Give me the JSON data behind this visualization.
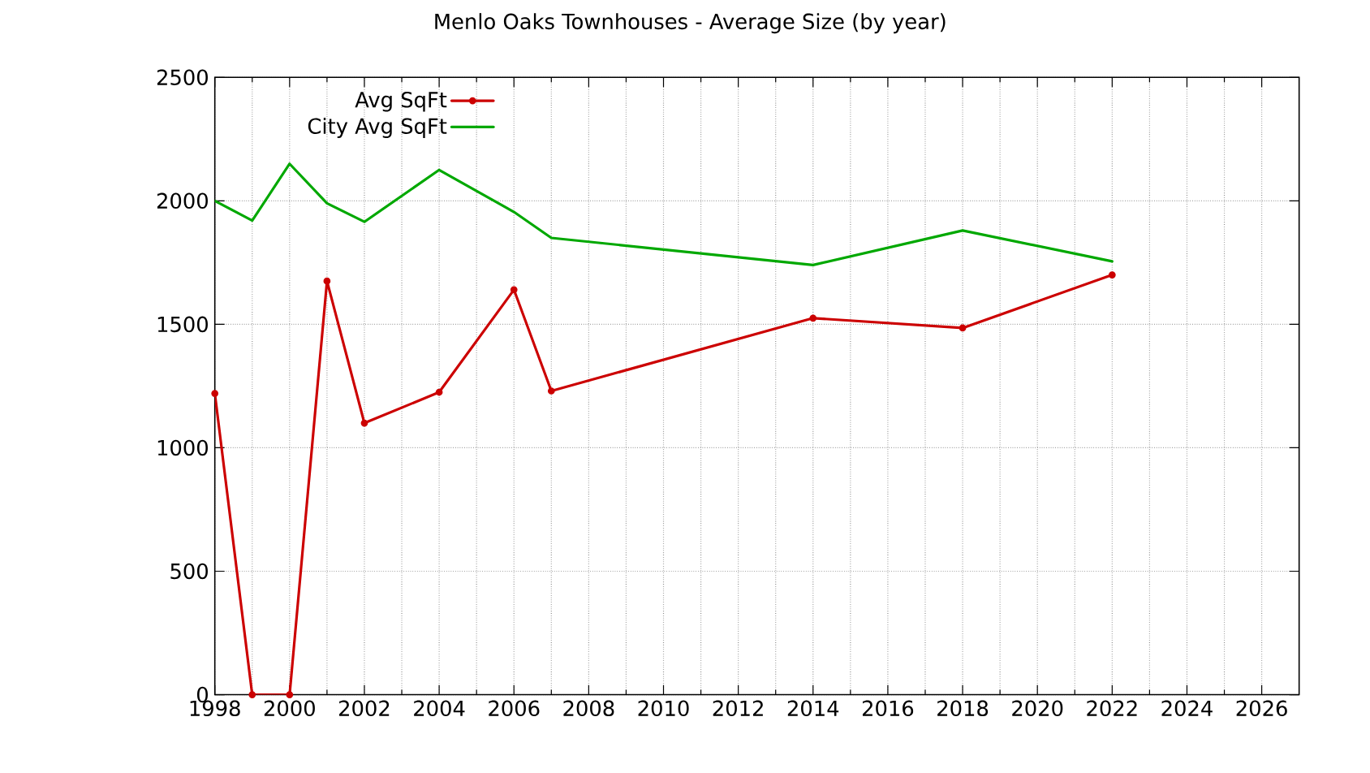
{
  "chart_data": {
    "type": "line",
    "title": "Menlo Oaks Townhouses - Average Size (by year)",
    "x": [
      1998,
      1999,
      2000,
      2001,
      2002,
      2004,
      2006,
      2007,
      2014,
      2018,
      2022
    ],
    "series": [
      {
        "name": "Avg SqFt",
        "color": "#cc0000",
        "values": [
          1220,
          0,
          0,
          1675,
          1100,
          1225,
          1640,
          1230,
          1525,
          1485,
          1700
        ]
      },
      {
        "name": "City Avg SqFt",
        "color": "#00a800",
        "marker": "none",
        "values": [
          2000,
          1920,
          2150,
          1990,
          1915,
          2125,
          1955,
          1850,
          1740,
          1880,
          1755
        ]
      }
    ],
    "xlim": [
      1998,
      2027
    ],
    "ylim": [
      0,
      2500
    ],
    "xticks": [
      1998,
      {
        "value": 1999,
        "label": null
      },
      2000,
      {
        "value": 2001,
        "label": null
      },
      2002,
      {
        "value": 2003,
        "label": null
      },
      2004,
      {
        "value": 2005,
        "label": null
      },
      2006,
      {
        "value": 2007,
        "label": null
      },
      2008,
      {
        "value": 2009,
        "label": null
      },
      2010,
      {
        "value": 2011,
        "label": null
      },
      2012,
      {
        "value": 2013,
        "label": null
      },
      2014,
      {
        "value": 2015,
        "label": null
      },
      2016,
      {
        "value": 2017,
        "label": null
      },
      2018,
      {
        "value": 2019,
        "label": null
      },
      2020,
      {
        "value": 2021,
        "label": null
      },
      2022,
      {
        "value": 2023,
        "label": null
      },
      2024,
      {
        "value": 2025,
        "label": null
      },
      2026
    ],
    "yticks": [
      0,
      500,
      1000,
      1500,
      2000,
      2500
    ],
    "grid": true,
    "legend": "top left",
    "marker": "circle"
  }
}
